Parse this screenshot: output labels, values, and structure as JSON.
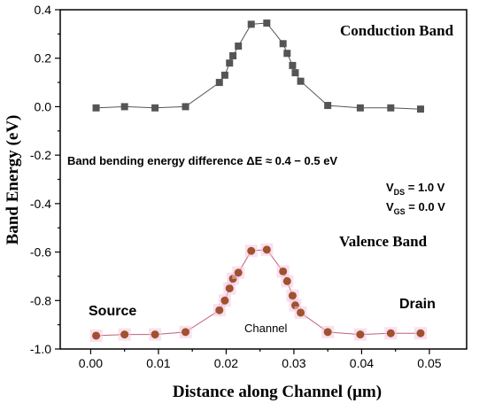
{
  "chart_data": {
    "type": "line",
    "xlabel": "Distance along Channel (μm)",
    "ylabel": "Band Energy (eV)",
    "xlim": [
      -0.0045,
      0.0555
    ],
    "ylim": [
      -1.0,
      0.4
    ],
    "x_ticks": [
      0.0,
      0.005,
      0.01,
      0.015,
      0.02,
      0.025,
      0.03,
      0.035,
      0.04,
      0.045,
      0.05
    ],
    "x_tick_labels": [
      "0.00",
      "0.01",
      "0.02",
      "0.03",
      "0.04",
      "0.05"
    ],
    "y_ticks": [
      -1.0,
      -0.8,
      -0.6,
      -0.4,
      -0.2,
      0.0,
      0.2,
      0.4
    ],
    "y_tick_labels": [
      "-1.0",
      "-0.8",
      "-0.6",
      "-0.4",
      "-0.2",
      "0.0",
      "0.2",
      "0.4"
    ],
    "grid": false,
    "series": [
      {
        "name": "Conduction Band",
        "marker": "square",
        "color": "#555555",
        "line_color": "#555555",
        "x": [
          0.0008,
          0.005,
          0.0095,
          0.014,
          0.019,
          0.0198,
          0.0205,
          0.021,
          0.0218,
          0.0237,
          0.026,
          0.0284,
          0.029,
          0.0298,
          0.0302,
          0.031,
          0.035,
          0.0398,
          0.0443,
          0.0487
        ],
        "y": [
          -0.005,
          0.0,
          -0.005,
          0.0,
          0.1,
          0.13,
          0.18,
          0.21,
          0.25,
          0.34,
          0.345,
          0.26,
          0.22,
          0.17,
          0.14,
          0.105,
          0.005,
          -0.005,
          -0.005,
          -0.01
        ]
      },
      {
        "name": "Valence Band",
        "marker": "circle",
        "color": "#a0522d",
        "line_color": "#c06078",
        "x": [
          0.0008,
          0.005,
          0.0095,
          0.014,
          0.019,
          0.0198,
          0.0205,
          0.021,
          0.0218,
          0.0237,
          0.026,
          0.0284,
          0.029,
          0.0298,
          0.0302,
          0.031,
          0.035,
          0.0398,
          0.0443,
          0.0487
        ],
        "y": [
          -0.945,
          -0.94,
          -0.94,
          -0.93,
          -0.84,
          -0.8,
          -0.75,
          -0.71,
          -0.685,
          -0.595,
          -0.59,
          -0.68,
          -0.72,
          -0.78,
          -0.82,
          -0.85,
          -0.93,
          -0.94,
          -0.935,
          -0.935
        ]
      }
    ],
    "annotations": {
      "conduction_label": "Conduction Band",
      "valence_label": "Valence Band",
      "band_bending": "Band bending energy difference ΔE ≈  0.4 − 0.5 eV",
      "vds": "V",
      "vds_sub": "DS",
      "vds_value": " = 1.0 V",
      "vgs": "V",
      "vgs_sub": "GS",
      "vgs_value": " = 0.0 V",
      "source": "Source",
      "drain": "Drain",
      "channel": "Channel"
    }
  }
}
